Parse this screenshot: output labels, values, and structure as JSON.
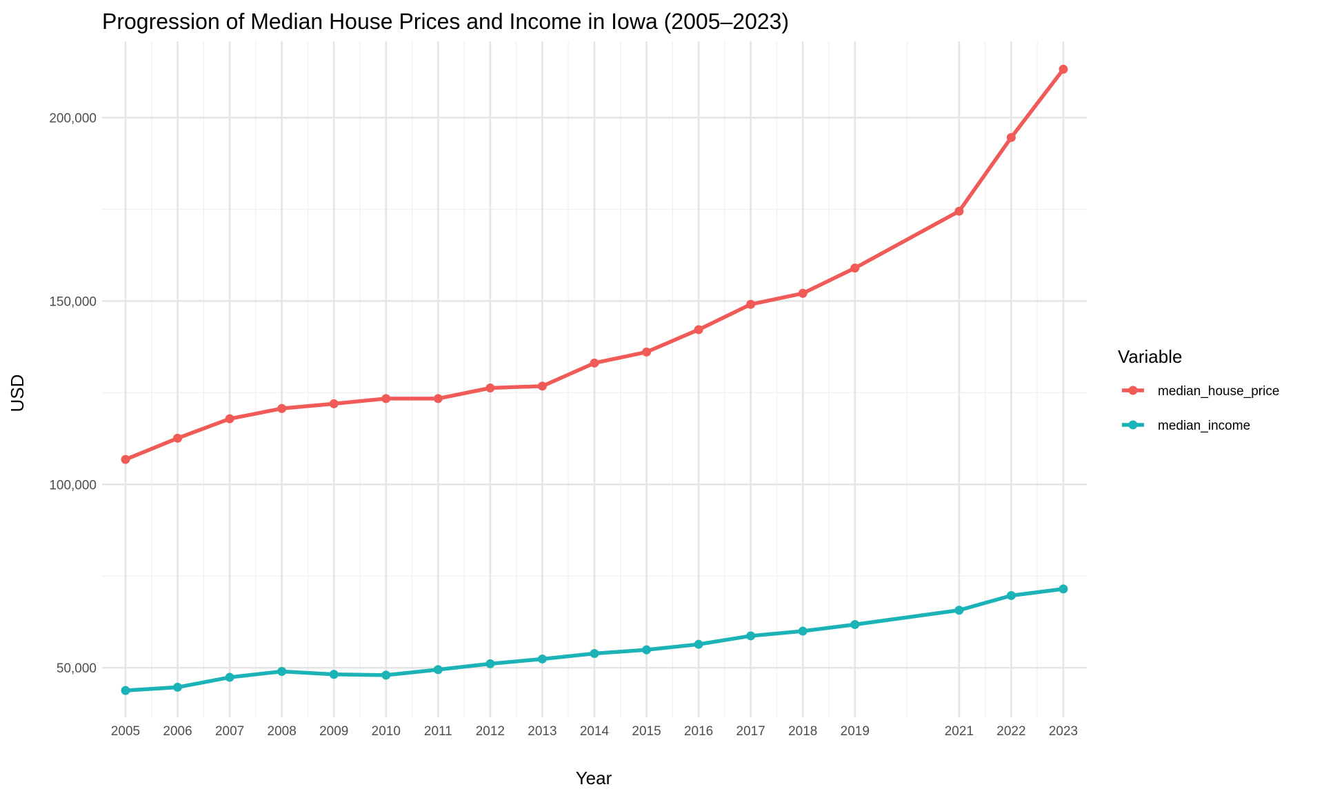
{
  "chart_data": {
    "type": "line",
    "title": "Progression of Median House Prices and Income in Iowa (2005–2023)",
    "xlabel": "Year",
    "ylabel": "USD",
    "x": [
      2005,
      2006,
      2007,
      2008,
      2009,
      2010,
      2011,
      2012,
      2013,
      2014,
      2015,
      2016,
      2017,
      2018,
      2019,
      2021,
      2022,
      2023
    ],
    "xlim": [
      2004.55,
      2023.45
    ],
    "ylim": [
      36500,
      220800
    ],
    "yticks": [
      50000,
      100000,
      150000,
      200000
    ],
    "ytick_labels": [
      "50,000",
      "100,000",
      "150,000",
      "200,000"
    ],
    "grid": true,
    "legend": {
      "title": "Variable",
      "placement": "right"
    },
    "series": [
      {
        "name": "median_house_price",
        "color": "#F05A57",
        "values": [
          106800,
          112600,
          117900,
          120700,
          122000,
          123400,
          123400,
          126300,
          126800,
          133100,
          136100,
          142200,
          149100,
          152100,
          159000,
          174500,
          194600,
          213200
        ]
      },
      {
        "name": "median_income",
        "color": "#1BB3B8",
        "values": [
          43800,
          44700,
          47400,
          49000,
          48200,
          48000,
          49500,
          51100,
          52400,
          53900,
          54900,
          56400,
          58700,
          60000,
          61800,
          65700,
          69700,
          71500
        ]
      }
    ]
  }
}
